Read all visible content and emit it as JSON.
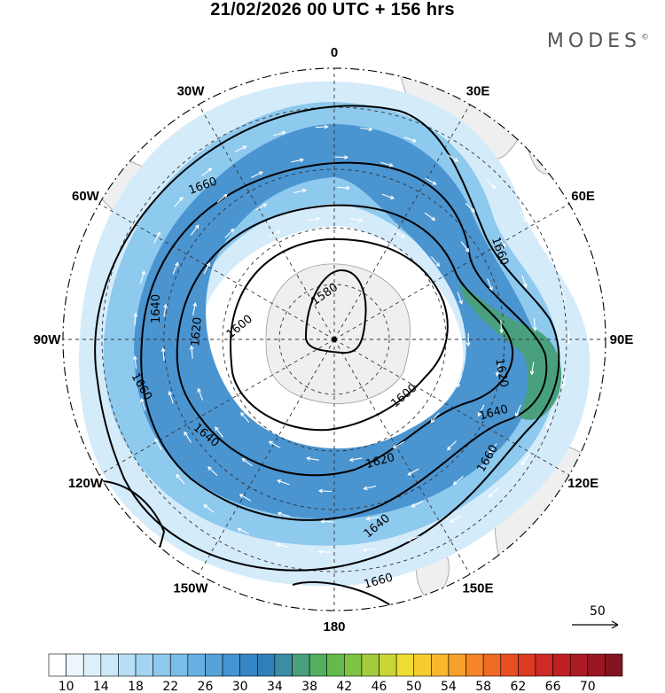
{
  "title": "21/02/2026  00 UTC  + 156 hrs",
  "brand": "MODES",
  "brand_mark": "©",
  "longitude_labels": [
    {
      "deg": 0,
      "text": "0"
    },
    {
      "deg": 30,
      "text": "30E"
    },
    {
      "deg": 60,
      "text": "60E"
    },
    {
      "deg": 90,
      "text": "90E"
    },
    {
      "deg": 120,
      "text": "120E"
    },
    {
      "deg": 150,
      "text": "150E"
    },
    {
      "deg": 180,
      "text": "180"
    },
    {
      "deg": -150,
      "text": "150W"
    },
    {
      "deg": -120,
      "text": "120W"
    },
    {
      "deg": -90,
      "text": "90W"
    },
    {
      "deg": -60,
      "text": "60W"
    },
    {
      "deg": -30,
      "text": "30W"
    }
  ],
  "contour_labels": [
    "1580",
    "1600",
    "1620",
    "1640",
    "1660"
  ],
  "reference_vector": "50",
  "colorbar": {
    "ticks": [
      "10",
      "14",
      "18",
      "22",
      "26",
      "30",
      "34",
      "38",
      "42",
      "46",
      "50",
      "54",
      "58",
      "62",
      "66",
      "70"
    ],
    "colors": [
      "#ffffff",
      "#eef7fd",
      "#ddf0fb",
      "#cbe8f9",
      "#b7dff6",
      "#a3d5f2",
      "#8ec9ee",
      "#7abde9",
      "#67b0e3",
      "#55a2db",
      "#4594d1",
      "#3787c7",
      "#2f7fb8",
      "#3a8da3",
      "#48a07e",
      "#52af5f",
      "#62bb4b",
      "#7ec344",
      "#a3cb3d",
      "#cad635",
      "#eedd31",
      "#f7cc30",
      "#f8b72d",
      "#f7a02b",
      "#f48528",
      "#ef6a25",
      "#e74f22",
      "#dc3a22",
      "#cf2a23",
      "#bf2024",
      "#ad1a23",
      "#9a1622",
      "#841320"
    ]
  }
}
